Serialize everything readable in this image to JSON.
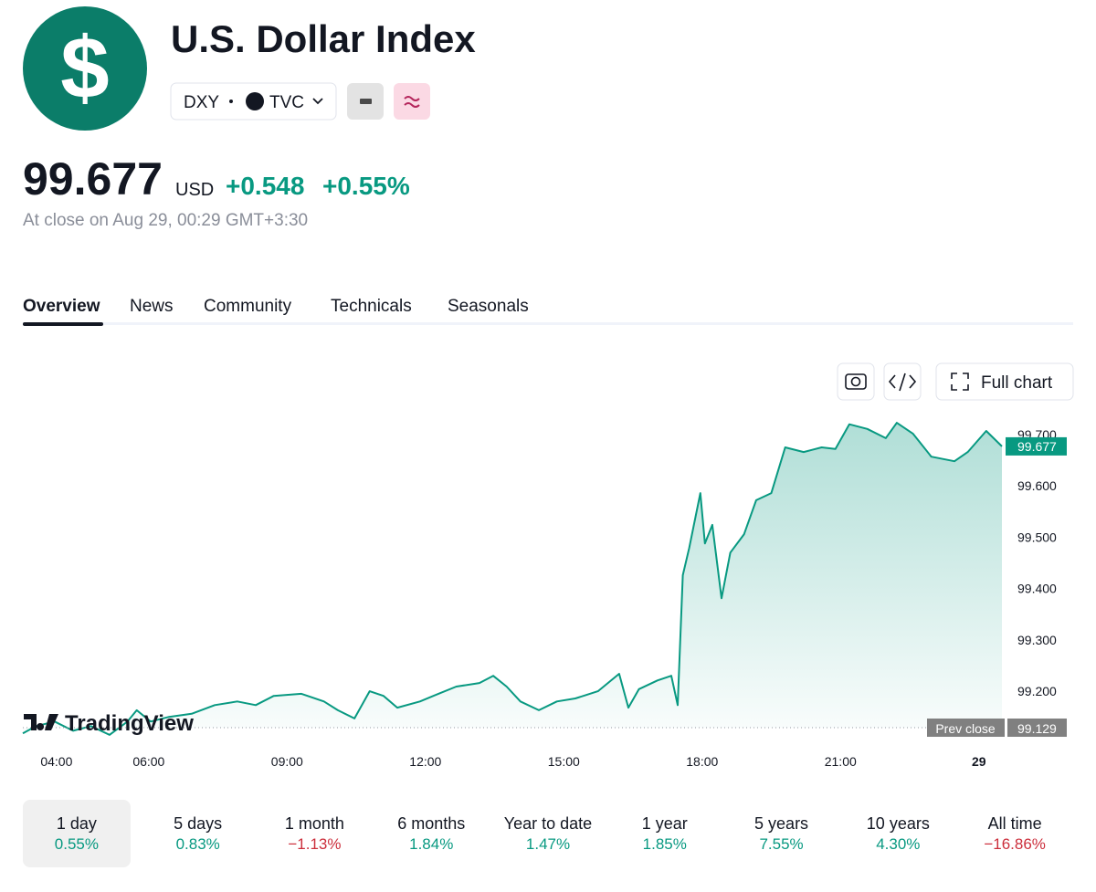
{
  "header": {
    "logo": "$",
    "title": "U.S. Dollar Index",
    "symbol": "DXY",
    "exchange": "TVC"
  },
  "quote": {
    "price": "99.677",
    "currency": "USD",
    "change": "+0.548",
    "change_percent": "+0.55%",
    "status": "At close on Aug 29, 00:29 GMT+3:30"
  },
  "tabs": [
    "Overview",
    "News",
    "Community",
    "Technicals",
    "Seasonals"
  ],
  "toolbar": {
    "full_chart": "Full chart"
  },
  "chart_data": {
    "type": "line",
    "color": "#089981",
    "x": [
      3.27,
      3.56,
      3.96,
      4.36,
      4.75,
      5.15,
      5.54,
      5.74,
      6.04,
      6.44,
      6.93,
      7.43,
      7.92,
      8.32,
      8.71,
      9.31,
      9.8,
      10.1,
      10.46,
      10.79,
      11.09,
      11.39,
      11.88,
      12.28,
      12.67,
      13.17,
      13.47,
      13.76,
      14.06,
      14.46,
      14.85,
      15.25,
      15.74,
      16.2,
      16.4,
      16.63,
      17.03,
      17.33,
      17.47,
      17.58,
      17.72,
      17.96,
      18.06,
      18.22,
      18.42,
      18.61,
      18.91,
      19.17,
      19.5,
      19.8,
      20.2,
      20.59,
      20.89,
      21.19,
      21.58,
      21.98,
      22.22,
      22.57,
      22.97,
      23.47,
      23.76,
      24.16,
      24.5
    ],
    "values": [
      99.118,
      99.132,
      99.141,
      99.123,
      99.132,
      99.115,
      99.141,
      99.163,
      99.141,
      99.15,
      99.156,
      99.173,
      99.18,
      99.173,
      99.191,
      99.195,
      99.18,
      99.163,
      99.147,
      99.2,
      99.191,
      99.168,
      99.18,
      99.195,
      99.209,
      99.216,
      99.23,
      99.209,
      99.18,
      99.163,
      99.18,
      99.186,
      99.2,
      99.234,
      99.168,
      99.204,
      99.221,
      99.23,
      99.173,
      99.426,
      99.479,
      99.586,
      99.488,
      99.524,
      99.381,
      99.47,
      99.506,
      99.572,
      99.586,
      99.675,
      99.666,
      99.675,
      99.672,
      99.72,
      99.711,
      99.693,
      99.723,
      99.702,
      99.657,
      99.648,
      99.666,
      99.707,
      99.677
    ],
    "xlim": [
      3.27,
      24.5
    ],
    "ylim": [
      99.097,
      99.764
    ],
    "xticks": [
      {
        "value": 4,
        "label": "04:00"
      },
      {
        "value": 6,
        "label": "06:00"
      },
      {
        "value": 9,
        "label": "09:00"
      },
      {
        "value": 12,
        "label": "12:00"
      },
      {
        "value": 15,
        "label": "15:00"
      },
      {
        "value": 18,
        "label": "18:00"
      },
      {
        "value": 21,
        "label": "21:00"
      },
      {
        "value": 24,
        "label": "29"
      }
    ],
    "yticks": [
      {
        "value": 99.2,
        "label": "99.200"
      },
      {
        "value": 99.3,
        "label": "99.300"
      },
      {
        "value": 99.4,
        "label": "99.400"
      },
      {
        "value": 99.5,
        "label": "99.500"
      },
      {
        "value": 99.6,
        "label": "99.600"
      },
      {
        "value": 99.7,
        "label": "99.700"
      }
    ],
    "last_value": 99.677,
    "prev_close": {
      "label": "Prev close",
      "value": 99.129
    },
    "watermark": "TradingView"
  },
  "periods": [
    {
      "label": "1 day",
      "change": "0.55%",
      "color": "#089981"
    },
    {
      "label": "5 days",
      "change": "0.83%",
      "color": "#089981"
    },
    {
      "label": "1 month",
      "change": "−1.13%",
      "color": "#cc2f3c"
    },
    {
      "label": "6 months",
      "change": "1.84%",
      "color": "#089981"
    },
    {
      "label": "Year to date",
      "change": "1.47%",
      "color": "#089981"
    },
    {
      "label": "1 year",
      "change": "1.85%",
      "color": "#089981"
    },
    {
      "label": "5 years",
      "change": "7.55%",
      "color": "#089981"
    },
    {
      "label": "10 years",
      "change": "4.30%",
      "color": "#089981"
    },
    {
      "label": "All time",
      "change": "−16.86%",
      "color": "#cc2f3c"
    }
  ]
}
